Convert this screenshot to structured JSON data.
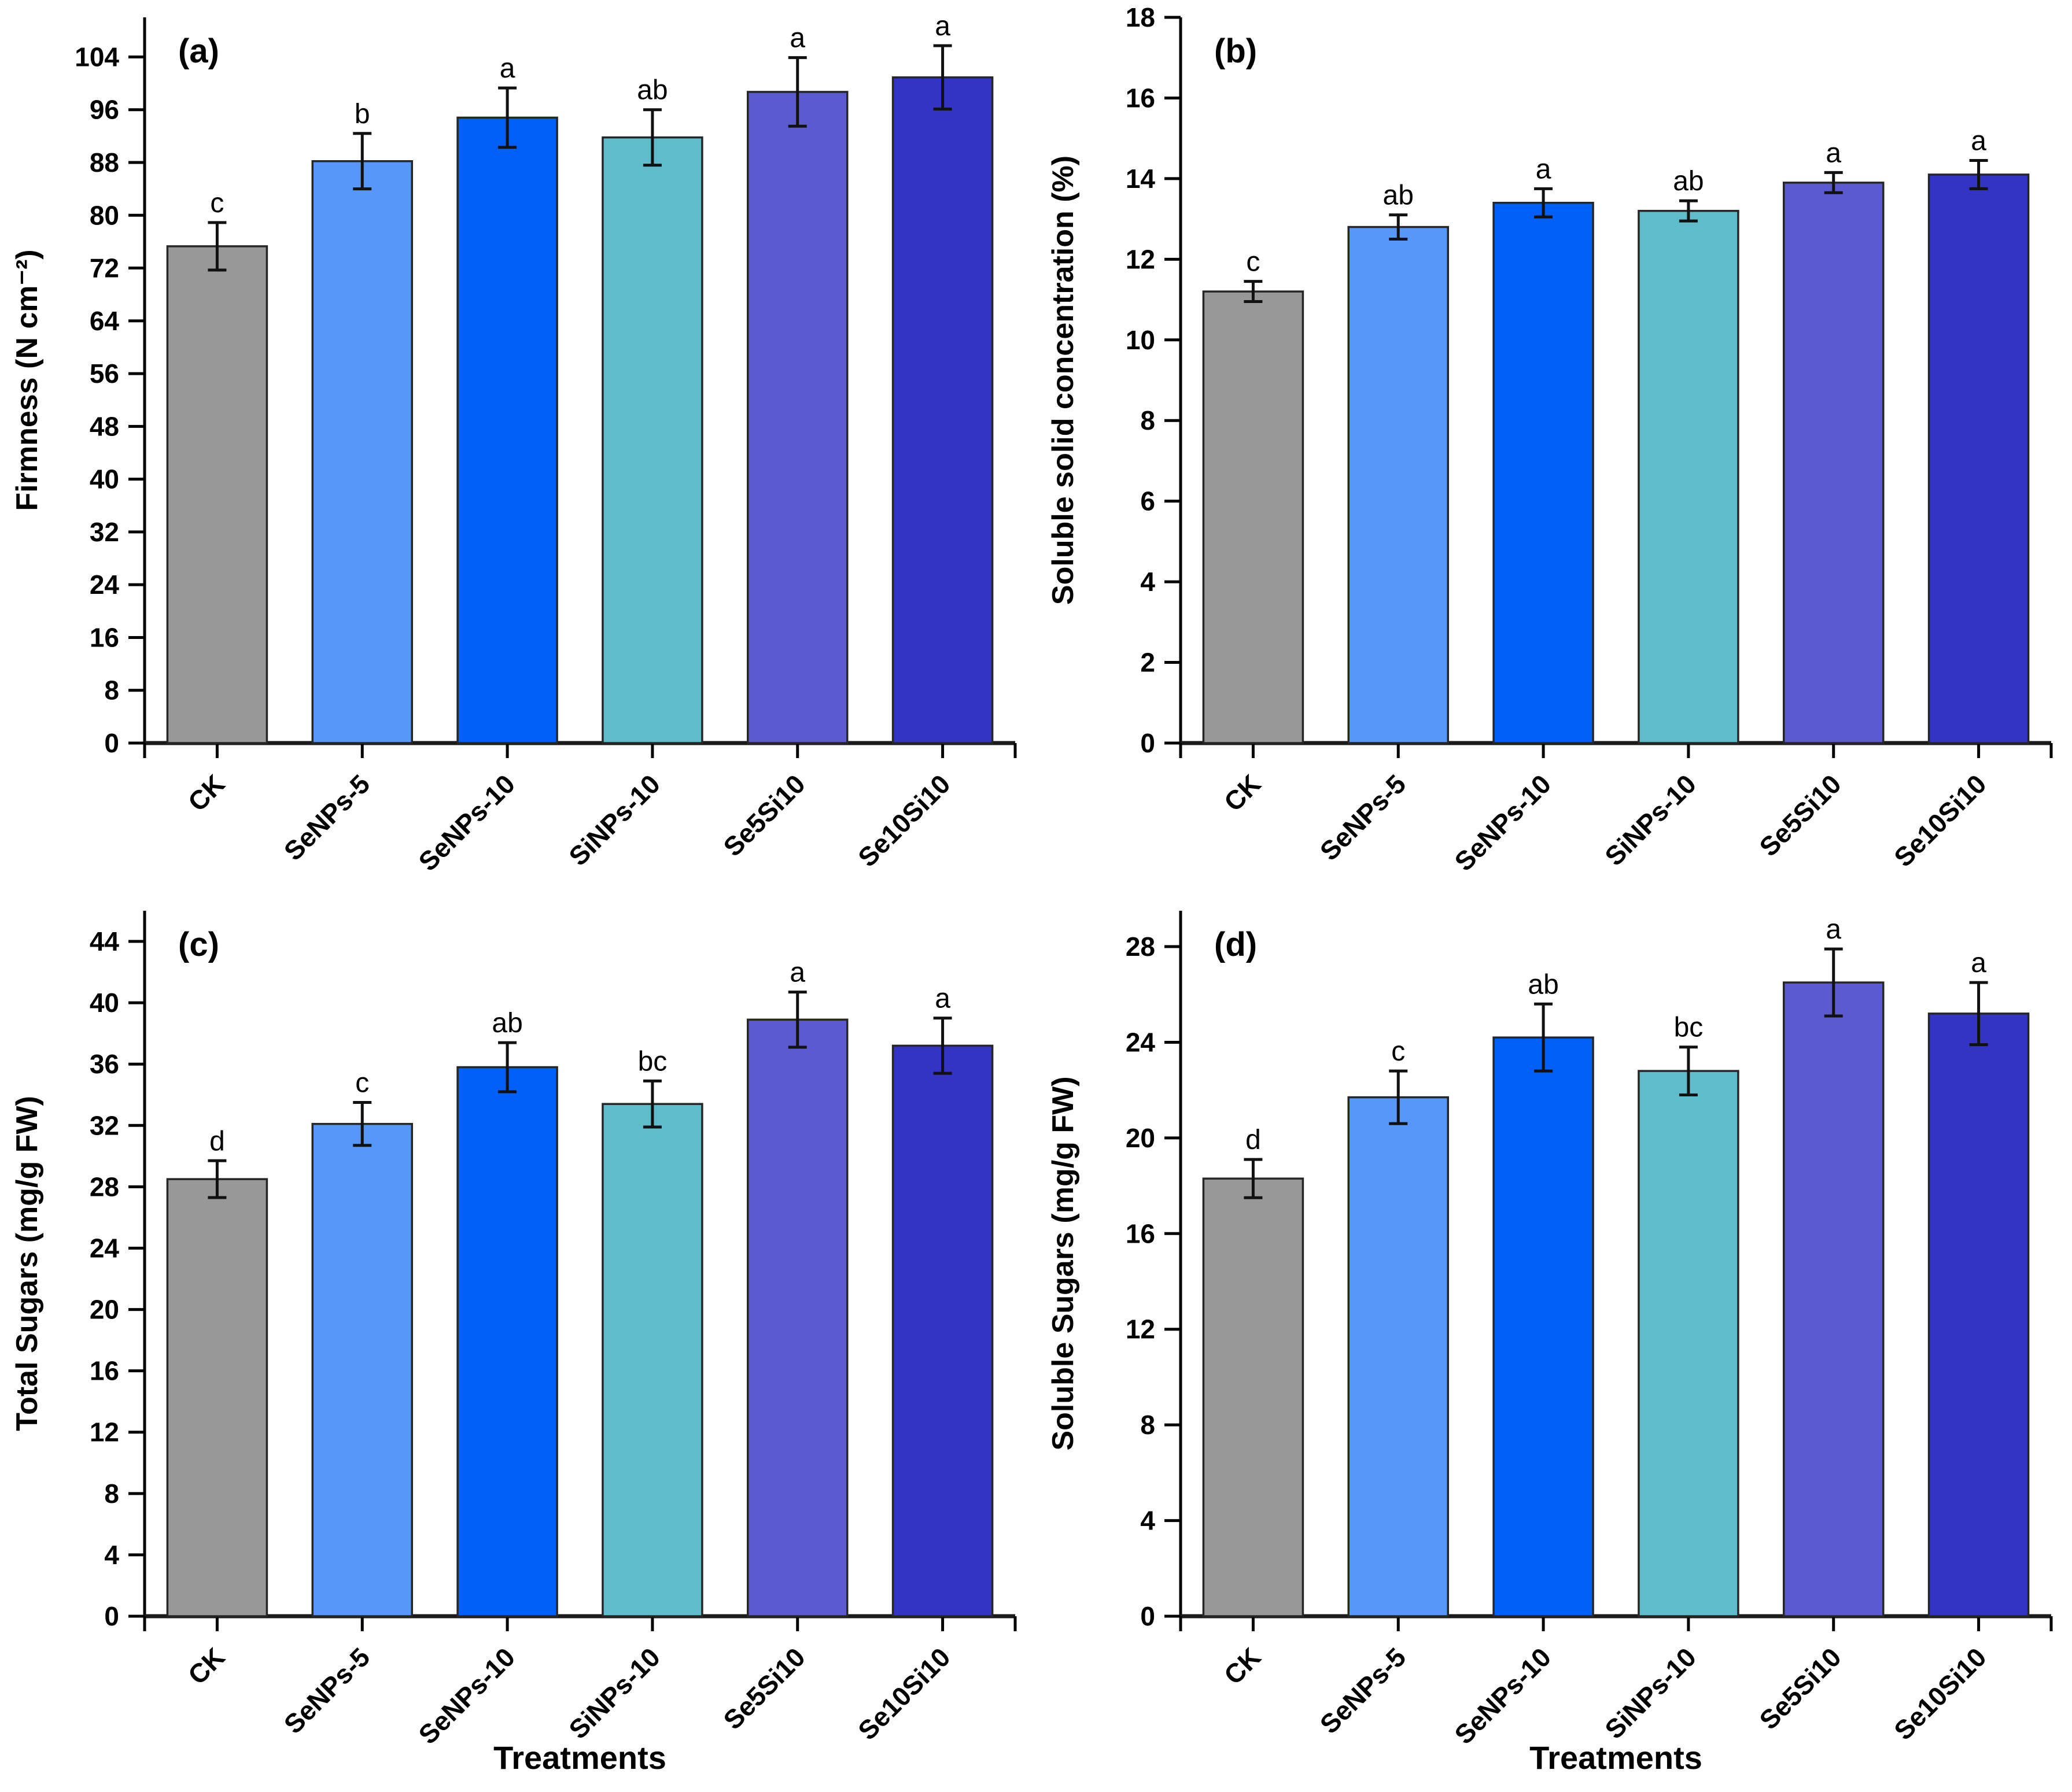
{
  "shared": {
    "categories": [
      "CK",
      "SeNPs-5",
      "SeNPs-10",
      "SiNPs-10",
      "Se5Si10",
      "Se10Si10"
    ],
    "x_axis_title": "Treatments",
    "bar_colors": [
      "#989898",
      "#5598FA",
      "#0060F6",
      "#5FBCCB",
      "#5C5ACF",
      "#3333C4"
    ],
    "bar_edge_color": "#262626",
    "axis_color": "#000000",
    "error_bar_color": "#111111",
    "background_color": "#FFFFFF"
  },
  "chart_data": [
    {
      "id": "a",
      "type": "bar",
      "panel_label": "(a)",
      "ylabel": "Firmness (N cm⁻²)",
      "x_title": "",
      "categories": [
        "CK",
        "SeNPs-5",
        "SeNPs-10",
        "SiNPs-10",
        "Se5Si10",
        "Se10Si10"
      ],
      "values": [
        75.3,
        88.2,
        94.8,
        91.8,
        98.7,
        100.9
      ],
      "errors": [
        3.6,
        4.2,
        4.5,
        4.2,
        5.2,
        4.8
      ],
      "sig_letters": [
        "c",
        "b",
        "a",
        "ab",
        "a",
        "a"
      ],
      "ylim": [
        0,
        110
      ],
      "yticks": {
        "max": 104,
        "step": 8
      },
      "grid": false,
      "legend": false
    },
    {
      "id": "b",
      "type": "bar",
      "panel_label": "(b)",
      "ylabel": "Soluble solid concentration (%)",
      "x_title": "",
      "categories": [
        "CK",
        "SeNPs-5",
        "SeNPs-10",
        "SiNPs-10",
        "Se5Si10",
        "Se10Si10"
      ],
      "values": [
        11.2,
        12.8,
        13.4,
        13.2,
        13.9,
        14.1
      ],
      "errors": [
        0.25,
        0.3,
        0.35,
        0.25,
        0.25,
        0.35
      ],
      "sig_letters": [
        "c",
        "ab",
        "a",
        "ab",
        "a",
        "a"
      ],
      "ylim": [
        0,
        18
      ],
      "yticks": {
        "max": 18,
        "step": 2
      },
      "grid": false,
      "legend": false
    },
    {
      "id": "c",
      "type": "bar",
      "panel_label": "(c)",
      "ylabel": "Total Sugars (mg/g FW)",
      "x_title": "Treatments",
      "categories": [
        "CK",
        "SeNPs-5",
        "SeNPs-10",
        "SiNPs-10",
        "Se5Si10",
        "Se10Si10"
      ],
      "values": [
        28.5,
        32.1,
        35.8,
        33.4,
        38.9,
        37.2
      ],
      "errors": [
        1.2,
        1.4,
        1.6,
        1.5,
        1.8,
        1.8
      ],
      "sig_letters": [
        "d",
        "c",
        "ab",
        "bc",
        "a",
        "a"
      ],
      "ylim": [
        0,
        46
      ],
      "yticks": {
        "max": 44,
        "step": 4
      },
      "grid": false,
      "legend": false
    },
    {
      "id": "d",
      "type": "bar",
      "panel_label": "(d)",
      "ylabel": "Soluble Sugars (mg/g FW)",
      "x_title": "Treatments",
      "categories": [
        "CK",
        "SeNPs-5",
        "SeNPs-10",
        "SiNPs-10",
        "Se5Si10",
        "Se10Si10"
      ],
      "values": [
        18.3,
        21.7,
        24.2,
        22.8,
        26.5,
        25.2
      ],
      "errors": [
        0.8,
        1.1,
        1.4,
        1.0,
        1.4,
        1.3
      ],
      "sig_letters": [
        "d",
        "c",
        "ab",
        "bc",
        "a",
        "a"
      ],
      "ylim": [
        0,
        29.5
      ],
      "yticks": {
        "max": 28,
        "step": 4
      },
      "grid": false,
      "legend": false
    }
  ]
}
